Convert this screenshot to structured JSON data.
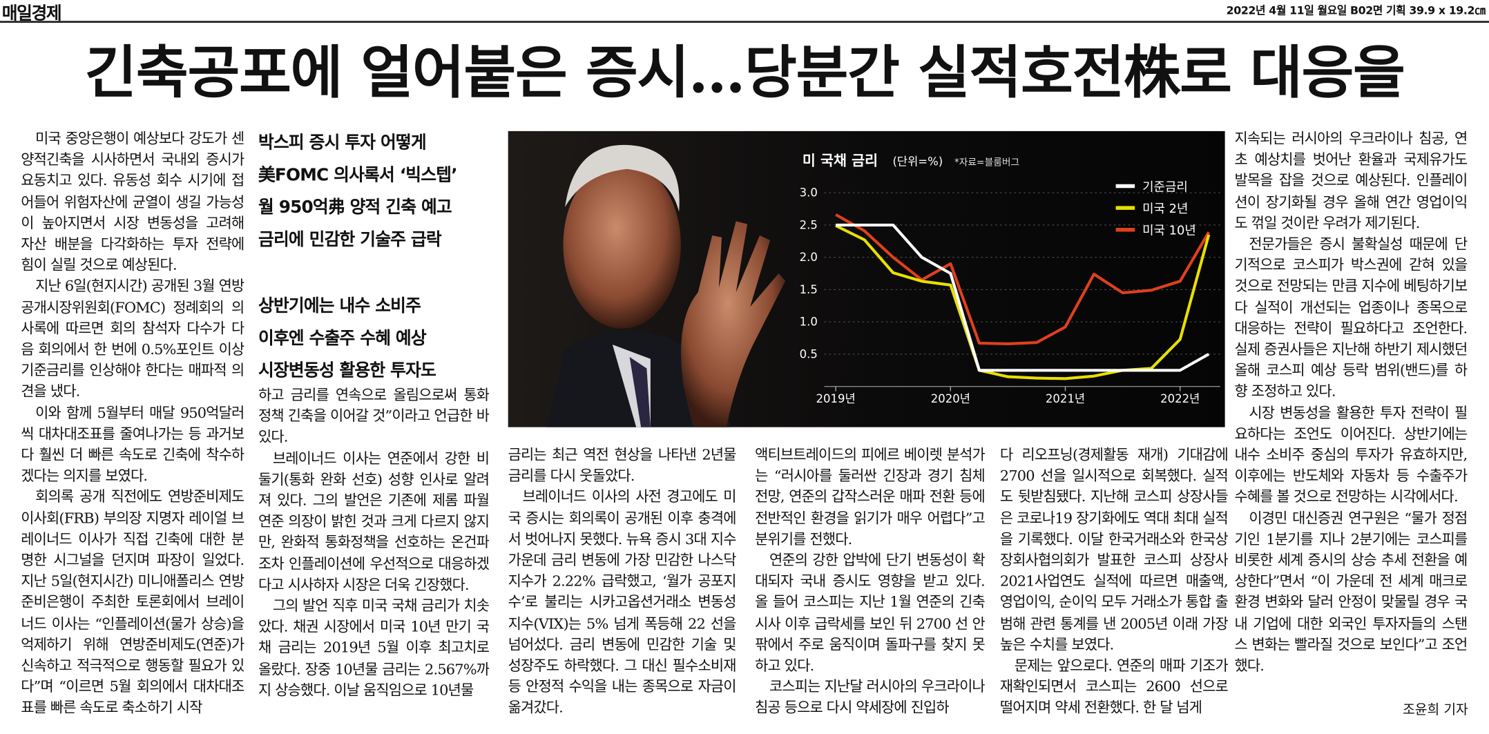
{
  "masthead": {
    "paper": "매일경제",
    "dateline": "2022년 4월 11일 월요일 B02면 기획 39.9 x 19.2㎝"
  },
  "headline": "긴축공포에 얼어붙은 증시…당분간 실적호전株로 대응을",
  "subheads": [
    "박스피 증시 투자 어떻게",
    "美FOMC 의사록서 ‘빅스텝’",
    "월 950억弗 양적 긴축 예고",
    "금리에 민감한 기술주 급락",
    "상반기에는 내수 소비주",
    "이후엔 수출주 수혜 예상",
    "시장변동성 활용한 투자도"
  ],
  "columns": [
    {
      "paragraphs": [
        "미국 중앙은행이 예상보다 강도가 센 양적긴축을 시사하면서 국내외 증시가 요동치고 있다. 유동성 회수 시기에 접어들어 위험자산에 균열이 생길 가능성이 높아지면서 시장 변동성을 고려해 자산 배분을 다각화하는 투자 전략에 힘이 실릴 것으로 예상된다.",
        "지난 6일(현지시간) 공개된 3월 연방공개시장위원회(FOMC) 정례회의 의사록에 따르면 회의 참석자 다수가 다음 회의에서 한 번에 0.5%포인트 이상 기준금리를 인상해야 한다는 매파적 의견을 냈다.",
        "이와 함께 5월부터 매달 950억달러씩 대차대조표를 줄여나가는 등 과거보다 훨씬 더 빠른 속도로 긴축에 착수하겠다는 의지를 보였다.",
        "회의록 공개 직전에도 연방준비제도이사회(FRB) 부의장 지명자 레이얼 브레이너드 이사가 직접 긴축에 대한 분명한 시그널을 던지며 파장이 일었다. 지난 5일(현지시간) 미니애폴리스 연방준비은행이 주최한 토론회에서 브레이너드 이사는 “인플레이션(물가 상승)을 억제하기 위해 연방준비제도(연준)가 신속하고 적극적으로 행동할 필요가 있다”며 “이르면 5월 회의에서 대차대조표를 빠른 속도로 축소하기 시작"
      ]
    },
    {
      "paragraphs": [
        "하고 금리를 연속으로 올림으로써 통화정책 긴축을 이어갈 것”이라고 언급한 바 있다.",
        "브레이너드 이사는 연준에서 강한 비둘기(통화 완화 선호) 성향 인사로 알려져 있다. 그의 발언은 기존에 제롬 파월 연준 의장이 밝힌 것과 크게 다르지 않지만, 완화적 통화정책을 선호하는 온건파조차 인플레이션에 우선적으로 대응하겠다고 시사하자 시장은 더욱 긴장했다.",
        "그의 발언 직후 미국 국채 금리가 치솟았다. 채권 시장에서 미국 10년 만기 국채 금리는 2019년 5월 이후 최고치로 올랐다. 장중 10년물 금리는 2.567%까지 상승했다. 이날 움직임으로 10년물"
      ]
    },
    {
      "paragraphs": [
        "금리는 최근 역전 현상을 나타낸 2년물 금리를 다시 웃돌았다.",
        "브레이너드 이사의 사전 경고에도 미국 증시는 회의록이 공개된 이후 충격에서 벗어나지 못했다. 뉴욕 증시 3대 지수 가운데 금리 변동에 가장 민감한 나스닥지수가 2.22% 급락했고, ‘월가 공포지수’로 불리는 시카고옵션거래소 변동성지수(VIX)는 5% 넘게 폭등해 22 선을 넘어섰다. 금리 변동에 민감한 기술 및 성장주도 하락했다. 그 대신 필수소비재 등 안정적 수익을 내는 종목으로 자금이 옮겨갔다."
      ]
    },
    {
      "paragraphs": [
        "액티브트레이드의 피에르 베이렛 분석가는 “러시아를 둘러싼 긴장과 경기 침체 전망, 연준의 갑작스러운 매파 전환 등에 전반적인 환경을 읽기가 매우 어렵다”고 분위기를 전했다.",
        "연준의 강한 압박에 단기 변동성이 확대되자 국내 증시도 영향을 받고 있다. 올 들어 코스피는 지난 1월 연준의 긴축 시사 이후 급락세를 보인 뒤 2700 선 안팎에서 주로 움직이며 돌파구를 찾지 못하고 있다.",
        "코스피는 지난달 러시아의 우크라이나 침공 등으로 다시 약세장에 진입하"
      ]
    },
    {
      "paragraphs": [
        "다 리오프닝(경제활동 재개) 기대감에 2700 선을 일시적으로 회복했다. 실적도 뒷받침됐다. 지난해 코스피 상장사들은 코로나19 장기화에도 역대 최대 실적을 기록했다. 이달 한국거래소와 한국상장회사협의회가 발표한 코스피 상장사 2021사업연도 실적에 따르면 매출액, 영업이익, 순이익 모두 거래소가 통합 출범해 관련 통계를 낸 2005년 이래 가장 높은 수치를 보였다.",
        "문제는 앞으로다. 연준의 매파 기조가 재확인되면서 코스피는 2600 선으로 떨어지며 약세 전환했다. 한 달 넘게"
      ]
    },
    {
      "paragraphs": [
        "지속되는 러시아의 우크라이나 침공, 연초 예상치를 벗어난 환율과 국제유가도 발목을 잡을 것으로 예상된다. 인플레이션이 장기화될 경우 올해 연간 영업이익도 꺾일 것이란 우려가 제기된다.",
        "전문가들은 증시 불확실성 때문에 단기적으로 코스피가 박스권에 갇혀 있을 것으로 전망되는 만큼 지수에 베팅하기보다 실적이 개선되는 업종이나 종목으로 대응하는 전략이 필요하다고 조언한다. 실제 증권사들은 지난해 하반기 제시했던 올해 코스피 예상 등락 범위(밴드)를 하향 조정하고 있다.",
        "시장 변동성을 활용한 투자 전략이 필요하다는 조언도 이어진다. 상반기에는 내수 소비주 중심의 투자가 유효하지만, 이후에는 반도체와 자동차 등 수출주가 수혜를 볼 것으로 전망하는 시각에서다.",
        "이경민 대신증권 연구원은 “물가 정점기인 1분기를 지나 2분기에는 코스피를 비롯한 세계 증시의 상승 추세 전환을 예상한다”면서 “이 가운데 전 세계 매크로 환경 변화와 달러 안정이 맞물릴 경우 국내 기업에 대한 외국인 투자자들의 스탠스 변화는 빨라질 것으로 보인다”고 조언했다."
      ]
    }
  ],
  "byline": "조윤희 기자",
  "chart_data": {
    "type": "line",
    "title": "미 국채 금리",
    "subtitle": "(단위=%)",
    "source": "*자료=블룸버그",
    "x": [
      2019,
      2019.25,
      2019.5,
      2019.75,
      2020,
      2020.25,
      2020.5,
      2020.75,
      2021,
      2021.25,
      2021.5,
      2021.75,
      2022,
      2022.25
    ],
    "xlim": [
      2018.9,
      2022.35
    ],
    "xticks": [
      {
        "value": 2019,
        "label": "2019년"
      },
      {
        "value": 2020,
        "label": "2020년"
      },
      {
        "value": 2021,
        "label": "2021년"
      },
      {
        "value": 2022,
        "label": "2022년"
      }
    ],
    "ylim": [
      0,
      3.1
    ],
    "yticks": [
      0.5,
      {
        "value": 1,
        "label": "1.0"
      },
      1.5,
      {
        "value": 2,
        "label": "2.0"
      },
      2.5,
      {
        "value": 3,
        "label": "3.0"
      }
    ],
    "grid": true,
    "legend": "upper right",
    "series": [
      {
        "name": "기준금리",
        "color": "#ffffff",
        "values": [
          2.5,
          2.5,
          2.5,
          2.0,
          1.75,
          0.25,
          0.25,
          0.25,
          0.25,
          0.25,
          0.25,
          0.25,
          0.25,
          0.5
        ]
      },
      {
        "name": "미국 2년",
        "color": "#e8e000",
        "values": [
          2.49,
          2.27,
          1.76,
          1.63,
          1.57,
          0.25,
          0.15,
          0.13,
          0.12,
          0.16,
          0.25,
          0.28,
          0.73,
          2.35
        ]
      },
      {
        "name": "미국 10년",
        "color": "#e0401c",
        "values": [
          2.66,
          2.41,
          2.0,
          1.65,
          1.9,
          0.67,
          0.66,
          0.68,
          0.92,
          1.74,
          1.45,
          1.49,
          1.63,
          2.39
        ]
      }
    ]
  }
}
